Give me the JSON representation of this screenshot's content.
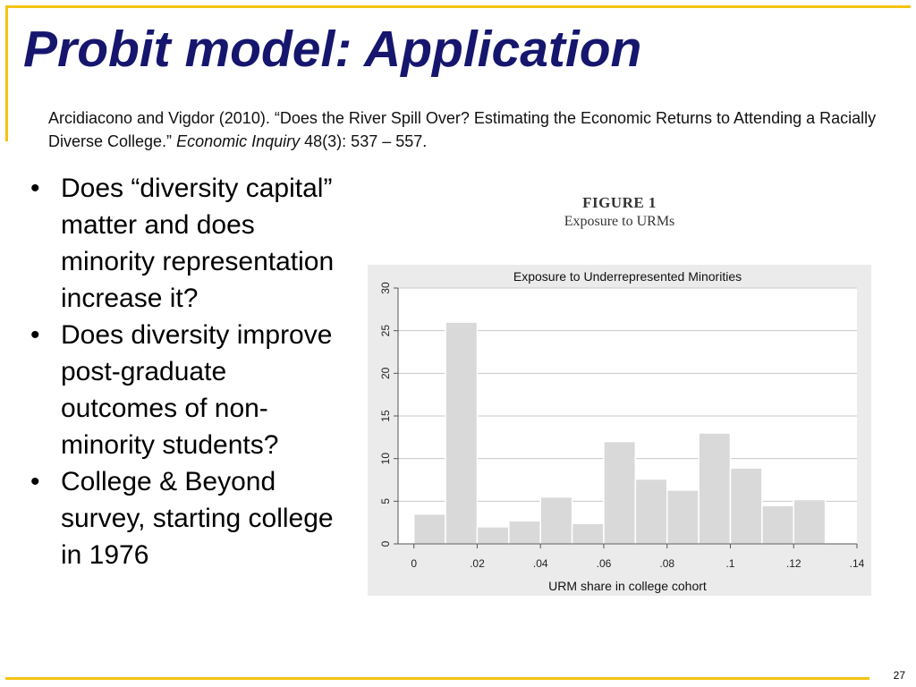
{
  "slide": {
    "title": "Probit model: Application",
    "citation": {
      "text": "Arcidiacono and Vigdor (2010). “Does the River Spill Over?  Estimating the Economic Returns to Attending a Racially Diverse College.”",
      "journal": "Economic Inquiry",
      "details": "48(3): 537 – 557."
    },
    "bullet_marker": "•",
    "bullets": [
      "Does “diversity capital” matter and does minority representation increase it?",
      "Does diversity improve post-graduate outcomes of non-minority students?",
      "College & Beyond survey, starting college in 1976"
    ],
    "figure_label": "FIGURE 1",
    "figure_caption": "Exposure to URMs",
    "page_number": "27"
  },
  "colors": {
    "title": "#16166e",
    "accent": "#f3c311",
    "bar_fill": "#d9d9d9",
    "bar_stroke": "#ffffff",
    "panel_bg": "#ebebeb",
    "plot_bg": "#ffffff",
    "gridline": "#c8c8c8"
  },
  "chart_data": {
    "type": "bar",
    "title": "Exposure to Underrepresented Minorities",
    "xlabel": "URM share in college cohort",
    "ylabel": "",
    "xlim": [
      -0.005,
      0.14
    ],
    "ylim": [
      0,
      30
    ],
    "grid": true,
    "bin_width": 0.01,
    "bins": [
      0,
      0.01,
      0.02,
      0.03,
      0.04,
      0.05,
      0.06,
      0.07,
      0.08,
      0.09,
      0.1,
      0.11,
      0.12
    ],
    "values": [
      3.5,
      26,
      2,
      2.7,
      5.5,
      2.4,
      12,
      7.6,
      6.3,
      13,
      8.9,
      4.5,
      5.2
    ],
    "xticks": [
      0,
      0.02,
      0.04,
      0.06,
      0.08,
      0.1,
      0.12,
      0.14
    ],
    "xtick_labels": [
      "0",
      ".02",
      ".04",
      ".06",
      ".08",
      ".1",
      ".12",
      ".14"
    ],
    "yticks": [
      0,
      5,
      10,
      15,
      20,
      25,
      30
    ],
    "ytick_labels": [
      "0",
      "5",
      "10",
      "15",
      "20",
      "25",
      "30"
    ]
  }
}
